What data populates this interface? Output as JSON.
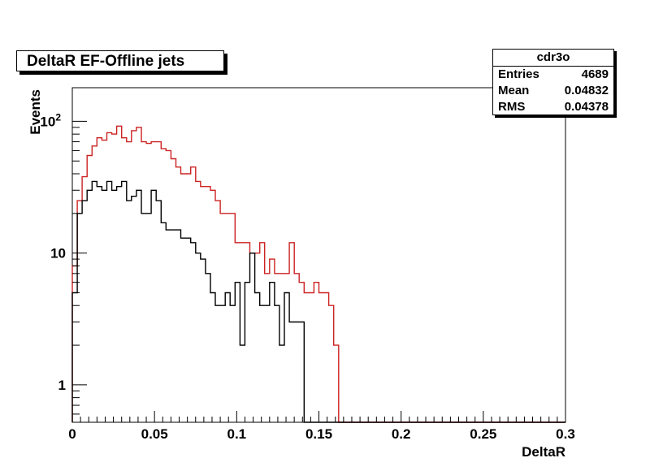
{
  "chart_data": {
    "type": "histogram",
    "title": "DeltaR EF-Offline jets",
    "xlabel": "DeltaR",
    "ylabel": "Events",
    "xlim": [
      0,
      0.3
    ],
    "ylim": [
      0.52,
      180
    ],
    "y_scale": "log",
    "grid": false,
    "bin_width": 0.003,
    "x_ticks": [
      "0",
      "0.05",
      "0.1",
      "0.15",
      "0.2",
      "0.25",
      "0.3"
    ],
    "y_ticks": [
      {
        "value": 1,
        "label": "1"
      },
      {
        "value": 10,
        "label": "10"
      },
      {
        "value": 100,
        "label": "10",
        "exp": "2"
      }
    ],
    "stats": {
      "name": "cdr3o",
      "rows": [
        {
          "label": "Entries",
          "value": "4689"
        },
        {
          "label": "Mean",
          "value": "0.04832"
        },
        {
          "label": "RMS",
          "value": "0.04378"
        }
      ]
    },
    "series": [
      {
        "color": "#cc2222",
        "values": [
          8,
          25,
          38,
          55,
          65,
          75,
          72,
          82,
          80,
          92,
          75,
          70,
          85,
          90,
          70,
          68,
          70,
          70,
          62,
          60,
          52,
          45,
          40,
          40,
          45,
          35,
          32,
          32,
          30,
          25,
          20,
          20,
          20,
          12,
          12,
          12,
          10,
          10,
          12,
          7,
          9,
          7,
          7,
          7,
          12,
          7,
          6,
          5,
          5,
          6,
          5,
          5,
          4,
          2,
          0,
          0,
          0,
          0,
          0,
          0,
          0,
          0,
          0,
          0,
          0,
          0,
          0,
          0,
          0,
          0,
          0,
          0,
          0,
          0,
          0,
          0,
          0,
          0,
          0,
          0,
          0,
          0,
          0,
          0,
          0,
          0,
          0,
          0,
          0,
          0,
          0,
          0,
          0,
          0,
          0,
          0,
          0,
          0,
          0,
          0
        ]
      },
      {
        "color": "#000000",
        "values": [
          5,
          20,
          25,
          30,
          35,
          32,
          30,
          35,
          30,
          32,
          35,
          25,
          27,
          30,
          20,
          20,
          30,
          25,
          17,
          15,
          15,
          15,
          13,
          13,
          12,
          10,
          9,
          7,
          5,
          4,
          4,
          5,
          4,
          6,
          2,
          6,
          10,
          5,
          4,
          4,
          6,
          4,
          2,
          5,
          3,
          3,
          3,
          0,
          0,
          0,
          0,
          0,
          0,
          0,
          0,
          0,
          0,
          0,
          0,
          0,
          0,
          0,
          0,
          0,
          0,
          0,
          0,
          0,
          0,
          0,
          0,
          0,
          0,
          0,
          0,
          0,
          0,
          0,
          0,
          0,
          0,
          0,
          0,
          0,
          0,
          0,
          0,
          0,
          0,
          0,
          0,
          0,
          0,
          0,
          0,
          0,
          0,
          0,
          0,
          0
        ]
      }
    ]
  }
}
